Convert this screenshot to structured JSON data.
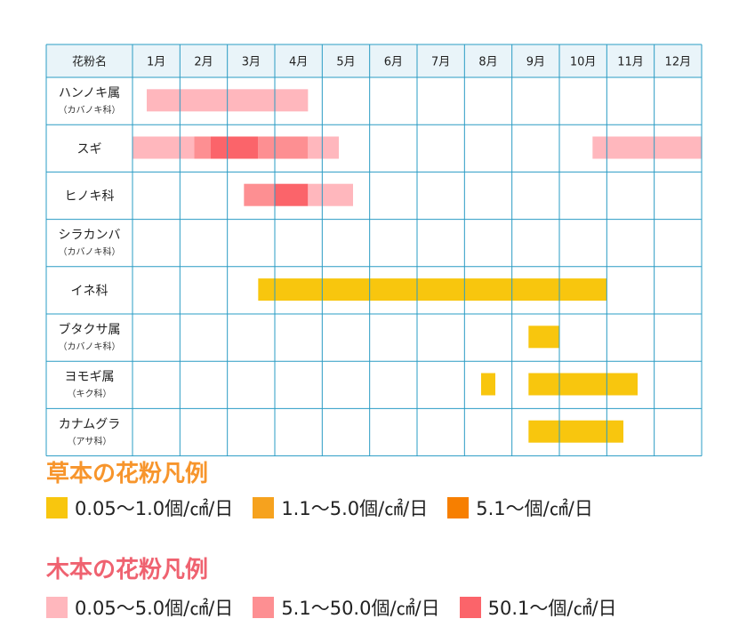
{
  "chart_data": {
    "type": "table",
    "header_label": "花粉名",
    "months": [
      "1月",
      "2月",
      "3月",
      "4月",
      "5月",
      "6月",
      "7月",
      "8月",
      "9月",
      "10月",
      "11月",
      "12月"
    ],
    "rows": [
      {
        "name": "ハンノキ属",
        "sub": "（カバノキ科）",
        "segments": [
          {
            "start": 1.3,
            "end": 4.7,
            "level": "wood_low"
          }
        ]
      },
      {
        "name": "スギ",
        "sub": "",
        "segments": [
          {
            "start": 1.0,
            "end": 2.3,
            "level": "wood_low"
          },
          {
            "start": 2.3,
            "end": 2.65,
            "level": "wood_mid"
          },
          {
            "start": 2.65,
            "end": 3.65,
            "level": "wood_high"
          },
          {
            "start": 3.65,
            "end": 4.7,
            "level": "wood_mid"
          },
          {
            "start": 4.7,
            "end": 5.35,
            "level": "wood_low"
          },
          {
            "start": 10.7,
            "end": 13.0,
            "level": "wood_low"
          }
        ]
      },
      {
        "name": "ヒノキ科",
        "sub": "",
        "segments": [
          {
            "start": 3.35,
            "end": 4.0,
            "level": "wood_mid"
          },
          {
            "start": 4.0,
            "end": 4.7,
            "level": "wood_high"
          },
          {
            "start": 4.7,
            "end": 5.65,
            "level": "wood_low"
          }
        ]
      },
      {
        "name": "シラカンバ",
        "sub": "（カバノキ科）",
        "segments": []
      },
      {
        "name": "イネ科",
        "sub": "",
        "segments": [
          {
            "start": 3.65,
            "end": 11.0,
            "level": "herb_low"
          }
        ]
      },
      {
        "name": "ブタクサ属",
        "sub": "（カバノキ科）",
        "segments": [
          {
            "start": 9.35,
            "end": 10.0,
            "level": "herb_low"
          }
        ]
      },
      {
        "name": "ヨモギ属",
        "sub": "（キク科）",
        "segments": [
          {
            "start": 8.35,
            "end": 8.65,
            "level": "herb_low"
          },
          {
            "start": 9.35,
            "end": 11.65,
            "level": "herb_low"
          }
        ]
      },
      {
        "name": "カナムグラ",
        "sub": "（アサ科）",
        "segments": [
          {
            "start": 9.35,
            "end": 11.35,
            "level": "herb_low"
          }
        ]
      }
    ],
    "level_colors": {
      "herb_low": "#f8c60e",
      "herb_mid": "#f6a21e",
      "herb_high": "#f77f00",
      "wood_low": "#ffb7bd",
      "wood_mid": "#fd8f92",
      "wood_high": "#fb646a"
    }
  },
  "styles": {
    "grid_color": "#2a9cc4",
    "header_bg": "#e9f4f9",
    "herb_title_color": "#f7952c",
    "wood_title_color": "#ef6270"
  },
  "legend": {
    "herb": {
      "title": "草本の花粉凡例",
      "items": [
        {
          "label": "0.05〜1.0個/㎠/日",
          "color": "#f8c60e"
        },
        {
          "label": "1.1〜5.0個/㎠/日",
          "color": "#f6a21e"
        },
        {
          "label": "5.1〜個/㎠/日",
          "color": "#f77f00"
        }
      ]
    },
    "wood": {
      "title": "木本の花粉凡例",
      "items": [
        {
          "label": "0.05〜5.0個/㎠/日",
          "color": "#ffb7bd"
        },
        {
          "label": "5.1〜50.0個/㎠/日",
          "color": "#fd8f92"
        },
        {
          "label": "50.1〜個/㎠/日",
          "color": "#fb646a"
        }
      ]
    }
  }
}
